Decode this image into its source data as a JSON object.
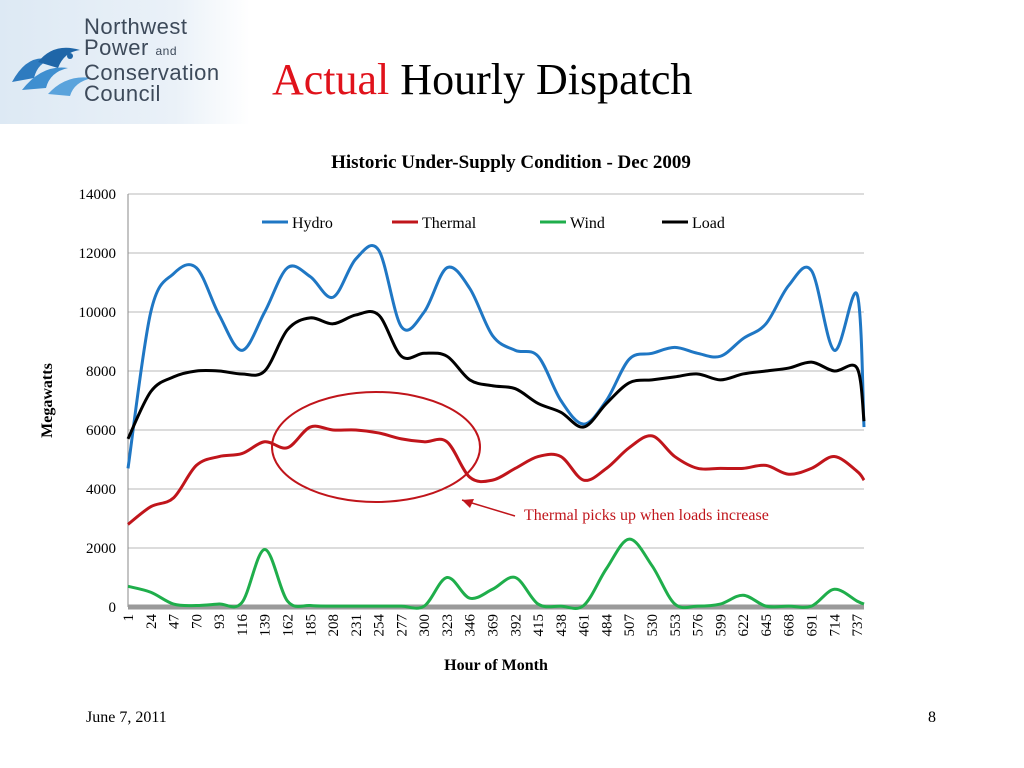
{
  "logo": {
    "line1": "Northwest",
    "line2": "Power",
    "line2_and": "and",
    "line3": "Conservation",
    "line4": "Council",
    "icon": "fish-wave-logo-icon",
    "color": "#3d4a5a",
    "mark_color": "#2e7bbf"
  },
  "slide": {
    "title_accent": "Actual",
    "title_rest": "Hourly Dispatch",
    "title_accent_color": "#e0121b",
    "footer_date": "June 7, 2011",
    "page_number": "8"
  },
  "chart_data": {
    "type": "line",
    "title": "Historic Under-Supply Condition - Dec 2009",
    "xlabel": "Hour of Month",
    "ylabel": "Megawatts",
    "ylim": [
      0,
      14000
    ],
    "yticks": [
      "0",
      "2000",
      "4000",
      "6000",
      "8000",
      "10000",
      "12000",
      "14000"
    ],
    "xlim": [
      1,
      744
    ],
    "xticks": [
      "1",
      "24",
      "47",
      "70",
      "93",
      "116",
      "139",
      "162",
      "185",
      "208",
      "231",
      "254",
      "277",
      "300",
      "323",
      "346",
      "369",
      "392",
      "415",
      "438",
      "461",
      "484",
      "507",
      "530",
      "553",
      "576",
      "599",
      "622",
      "645",
      "668",
      "691",
      "714",
      "737"
    ],
    "grid": true,
    "legend_position": "top",
    "x": [
      1,
      24,
      47,
      70,
      93,
      116,
      139,
      162,
      185,
      208,
      231,
      254,
      277,
      300,
      323,
      346,
      369,
      392,
      415,
      438,
      461,
      484,
      507,
      530,
      553,
      576,
      599,
      622,
      645,
      668,
      691,
      714,
      737,
      744
    ],
    "series": [
      {
        "name": "Hydro",
        "color": "#1f77c4",
        "values": [
          4700,
          10000,
          11300,
          11500,
          9900,
          8700,
          10000,
          11500,
          11200,
          10500,
          11800,
          12100,
          9500,
          10000,
          11500,
          10800,
          9200,
          8700,
          8500,
          7000,
          6200,
          7000,
          8400,
          8600,
          8800,
          8600,
          8500,
          9100,
          9600,
          10900,
          11400,
          8700,
          10600,
          6100
        ]
      },
      {
        "name": "Thermal",
        "color": "#c0151b",
        "values": [
          2800,
          3400,
          3700,
          4800,
          5100,
          5200,
          5600,
          5400,
          6100,
          6000,
          6000,
          5900,
          5700,
          5600,
          5600,
          4400,
          4300,
          4700,
          5100,
          5100,
          4300,
          4700,
          5400,
          5800,
          5100,
          4700,
          4700,
          4700,
          4800,
          4500,
          4700,
          5100,
          4600,
          4300
        ]
      },
      {
        "name": "Wind",
        "color": "#1fae4b",
        "values": [
          700,
          500,
          100,
          50,
          100,
          150,
          1950,
          200,
          50,
          30,
          30,
          30,
          30,
          30,
          1000,
          300,
          600,
          1000,
          100,
          30,
          50,
          1300,
          2300,
          1400,
          100,
          30,
          100,
          400,
          30,
          30,
          30,
          600,
          200,
          100
        ]
      },
      {
        "name": "Load",
        "color": "#000000",
        "values": [
          5700,
          7300,
          7800,
          8000,
          8000,
          7900,
          8000,
          9400,
          9800,
          9600,
          9900,
          9900,
          8500,
          8600,
          8500,
          7700,
          7500,
          7400,
          6900,
          6600,
          6100,
          6900,
          7600,
          7700,
          7800,
          7900,
          7700,
          7900,
          8000,
          8100,
          8300,
          8000,
          8100,
          6300
        ]
      }
    ],
    "annotation": {
      "text": "Thermal picks up when loads increase",
      "color": "#c0151b"
    }
  }
}
